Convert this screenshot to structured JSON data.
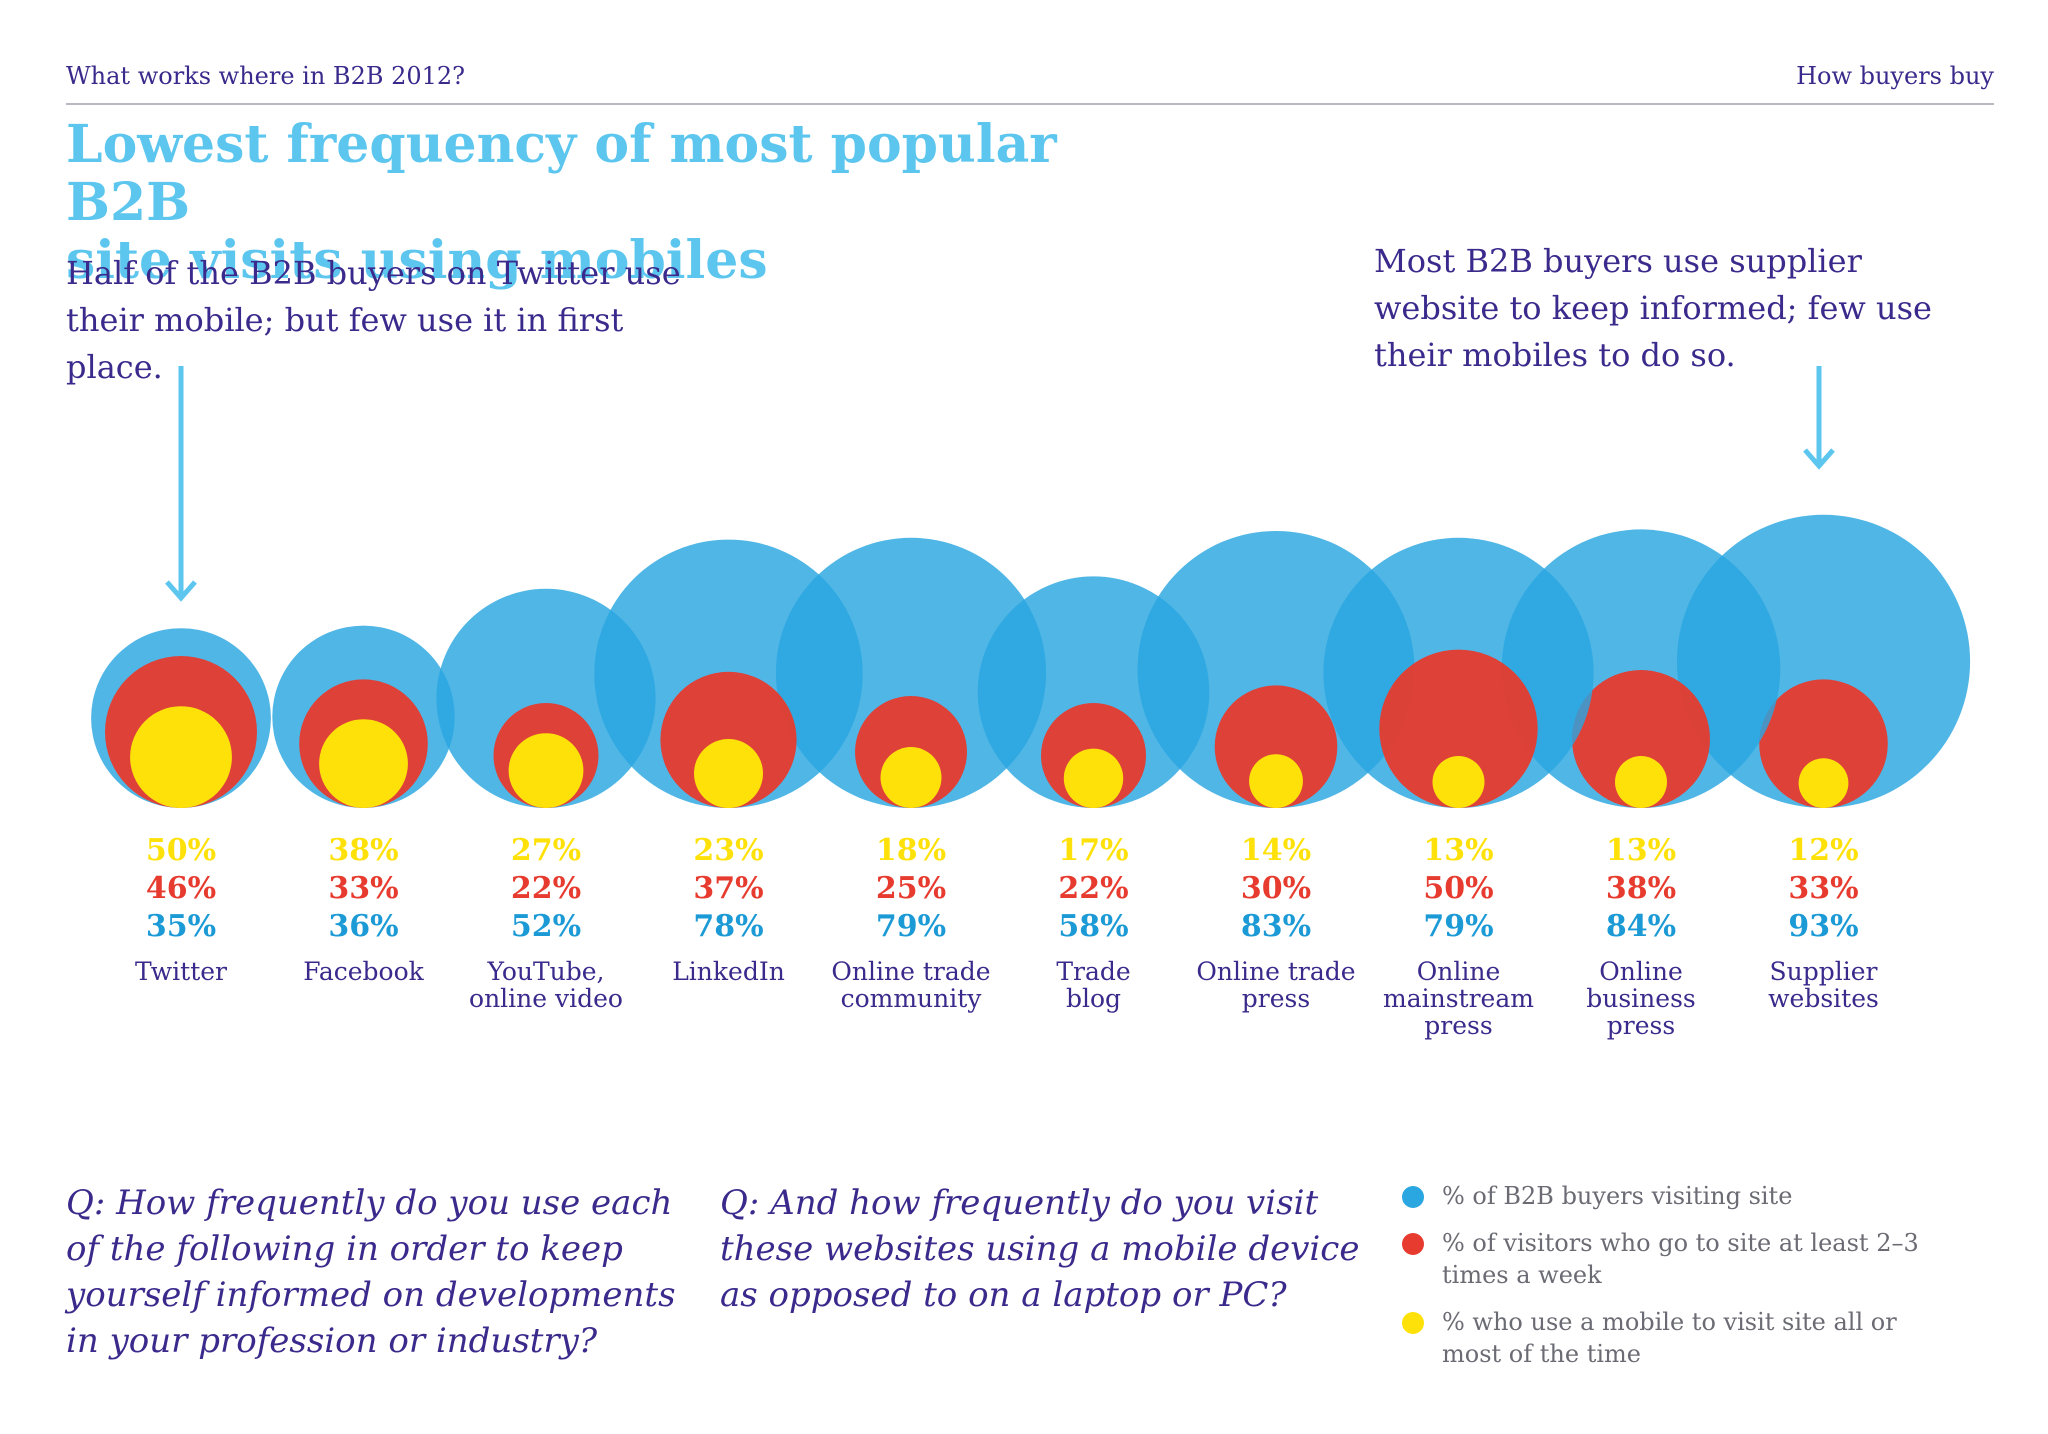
{
  "header": {
    "left": "What works where in B2B 2012?",
    "right": "How buyers buy"
  },
  "title_line1": "Lowest frequency of most popular B2B",
  "title_line2": "site visits using mobiles",
  "annotation_left": "Half of the B2B buyers on Twitter use their mobile; but few use it in first place.",
  "annotation_right": "Most B2B buyers use supplier website to keep informed; few use their mobiles to do so.",
  "question_1": "Q: How frequently do you use each of the following in order to keep yourself informed on developments in your profession or industry?",
  "question_2": "Q: And how frequently do you visit these websites using a mobile device as opposed to on a laptop or PC?",
  "legend": {
    "blue": "% of B2B buyers visiting site",
    "red": "% of visitors who go to site at least 2–3 times a week",
    "yellow": "% who use a mobile to visit site all or most of the time"
  },
  "colors": {
    "blue": "#2aa6e0",
    "red": "#e63b2e",
    "yellow": "#ffe10a",
    "title": "#5cc6ee",
    "text": "#3b2a8c"
  },
  "chart_data": {
    "type": "bubble",
    "categories": [
      [
        "Twitter"
      ],
      [
        "Facebook"
      ],
      [
        "YouTube,",
        "online video"
      ],
      [
        "LinkedIn"
      ],
      [
        "Online trade",
        "community"
      ],
      [
        "Trade",
        "blog"
      ],
      [
        "Online trade",
        "press"
      ],
      [
        "Online",
        "mainstream",
        "press"
      ],
      [
        "Online",
        "business",
        "press"
      ],
      [
        "Supplier",
        "websites"
      ]
    ],
    "series": [
      {
        "name": "% of B2B buyers visiting site",
        "color": "blue",
        "values": [
          35,
          36,
          52,
          78,
          79,
          58,
          83,
          79,
          84,
          93
        ]
      },
      {
        "name": "% of visitors who go to site at least 2–3 times a week",
        "color": "red",
        "values": [
          46,
          33,
          22,
          37,
          25,
          22,
          30,
          50,
          38,
          33
        ]
      },
      {
        "name": "% who use a mobile to visit site all or most of the time",
        "color": "yellow",
        "values": [
          50,
          38,
          27,
          23,
          18,
          17,
          14,
          13,
          13,
          12
        ]
      }
    ],
    "value_suffix": "%"
  }
}
